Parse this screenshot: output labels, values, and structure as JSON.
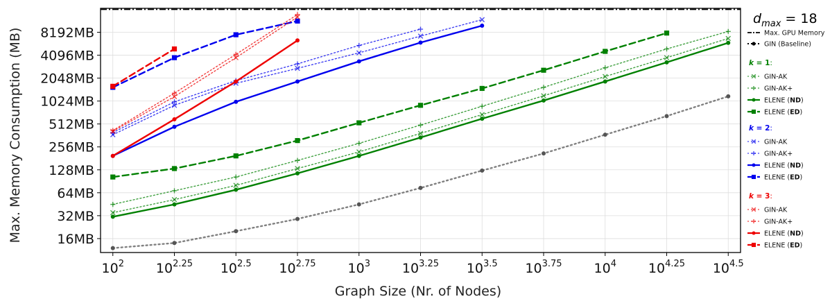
{
  "chart_data": {
    "type": "line",
    "title": "",
    "xlabel": "Graph Size (Nr. of Nodes)",
    "ylabel": "Max. Memory Consumption (MB)",
    "x_scale": "log10",
    "y_scale": "log2",
    "x_ticks": [
      {
        "base": "10",
        "exp": "",
        "value": 100
      },
      {
        "base": "10",
        "exp": "2.25",
        "value": 177.83
      },
      {
        "base": "10",
        "exp": "2.5",
        "value": 316.23
      },
      {
        "base": "10",
        "exp": "2.75",
        "value": 562.34
      },
      {
        "base": "10",
        "exp": "3",
        "value": 1000
      },
      {
        "base": "10",
        "exp": "3.25",
        "value": 1778.28
      },
      {
        "base": "10",
        "exp": "3.5",
        "value": 3162.28
      },
      {
        "base": "10",
        "exp": "3.75",
        "value": 5623.41
      },
      {
        "base": "10",
        "exp": "4",
        "value": 10000
      },
      {
        "base": "10",
        "exp": "4.25",
        "value": 17782.79
      },
      {
        "base": "10",
        "exp": "4.5",
        "value": 31622.78
      }
    ],
    "x_tick_first_exp": "2",
    "y_ticks": [
      {
        "label": "16MB",
        "value": 16
      },
      {
        "label": "32MB",
        "value": 32
      },
      {
        "label": "64MB",
        "value": 64
      },
      {
        "label": "128MB",
        "value": 128
      },
      {
        "label": "256MB",
        "value": 256
      },
      {
        "label": "512MB",
        "value": 512
      },
      {
        "label": "1024MB",
        "value": 1024
      },
      {
        "label": "2048MB",
        "value": 2048
      },
      {
        "label": "4096MB",
        "value": 4096
      },
      {
        "label": "8192MB",
        "value": 8192
      }
    ],
    "xlim_exp": [
      1.95,
      4.55
    ],
    "ylim_mb": [
      10.5,
      16900
    ],
    "grid": true,
    "legend_position": "right",
    "dmax": {
      "symbol": "d",
      "subscript": "max",
      "text": "= 18"
    },
    "gpu_limit_mb": 16384,
    "legend": {
      "top": [
        {
          "label": "Max. GPU Memory",
          "series_ref": "gpu"
        },
        {
          "label": "GIN (Baseline)",
          "series_ref": "gin"
        }
      ],
      "groups": [
        {
          "heading_k": "k",
          "heading_value": "1",
          "color": "#008000",
          "items": [
            {
              "pre": "GIN-AK",
              "bold": "",
              "post": "",
              "style": "x-dotted"
            },
            {
              "pre": "GIN-AK+",
              "bold": "",
              "post": "",
              "style": "plus-dotted"
            },
            {
              "pre": "ELENE (",
              "bold": "ND",
              "post": ")",
              "style": "dot-solid"
            },
            {
              "pre": "ELENE (",
              "bold": "ED",
              "post": ")",
              "style": "square-dashed"
            }
          ]
        },
        {
          "heading_k": "k",
          "heading_value": "2",
          "color": "#0000ee",
          "items": [
            {
              "pre": "GIN-AK",
              "bold": "",
              "post": "",
              "style": "x-dotted"
            },
            {
              "pre": "GIN-AK+",
              "bold": "",
              "post": "",
              "style": "plus-dotted"
            },
            {
              "pre": "ELENE (",
              "bold": "ND",
              "post": ")",
              "style": "dot-solid"
            },
            {
              "pre": "ELENE (",
              "bold": "ED",
              "post": ")",
              "style": "square-dashed"
            }
          ]
        },
        {
          "heading_k": "k",
          "heading_value": "3",
          "color": "#ee0000",
          "items": [
            {
              "pre": "GIN-AK",
              "bold": "",
              "post": "",
              "style": "x-dotted"
            },
            {
              "pre": "GIN-AK+",
              "bold": "",
              "post": "",
              "style": "plus-dotted"
            },
            {
              "pre": "ELENE (",
              "bold": "ND",
              "post": ")",
              "style": "dot-solid"
            },
            {
              "pre": "ELENE (",
              "bold": "ED",
              "post": ")",
              "style": "square-dashed"
            }
          ]
        }
      ]
    },
    "series": [
      {
        "id": "gin",
        "color": "#555555",
        "style": "dot-dotted",
        "x": [
          100,
          177.83,
          316.23,
          562.34,
          1000,
          1778.28,
          3162.28,
          5623.41,
          10000,
          17782.79,
          31622.78
        ],
        "values": [
          12,
          14,
          20,
          29,
          45,
          74,
          125,
          210,
          370,
          650,
          1180
        ]
      },
      {
        "id": "k1-ginak",
        "color": "#008000",
        "style": "x-dotted",
        "x": [
          100,
          177.83,
          316.23,
          562.34,
          1000,
          1778.28,
          3162.28,
          5623.41,
          10000,
          17782.79,
          31622.78
        ],
        "values": [
          35,
          52,
          80,
          133,
          220,
          385,
          680,
          1200,
          2150,
          3800,
          6800
        ]
      },
      {
        "id": "k1-ginakplus",
        "color": "#008000",
        "style": "plus-dotted",
        "x": [
          100,
          177.83,
          316.23,
          562.34,
          1000,
          1778.28,
          3162.28,
          5623.41,
          10000,
          17782.79,
          31622.78
        ],
        "values": [
          45,
          68,
          103,
          170,
          285,
          495,
          875,
          1550,
          2800,
          4950,
          8400
        ]
      },
      {
        "id": "k1-nd",
        "color": "#008000",
        "style": "dot-solid",
        "x": [
          100,
          177.83,
          316.23,
          562.34,
          1000,
          1778.28,
          3162.28,
          5623.41,
          10000,
          17782.79,
          31622.78
        ],
        "values": [
          31,
          45,
          70,
          115,
          195,
          340,
          600,
          1040,
          1850,
          3300,
          5950
        ]
      },
      {
        "id": "k1-ed",
        "color": "#008000",
        "style": "square-dashed",
        "x": [
          100,
          177.83,
          316.23,
          562.34,
          1000,
          1778.28,
          3162.28,
          5623.41,
          10000,
          17782.79
        ],
        "values": [
          103,
          133,
          195,
          310,
          530,
          900,
          1500,
          2600,
          4600,
          8000
        ]
      },
      {
        "id": "k2-ginak",
        "color": "#0000ee",
        "style": "x-dotted",
        "x": [
          100,
          177.83,
          316.23,
          562.34,
          1000,
          1778.28,
          3162.28
        ],
        "values": [
          370,
          900,
          1750,
          2750,
          4400,
          7300,
          12000
        ]
      },
      {
        "id": "k2-ginakplus",
        "color": "#0000ee",
        "style": "plus-dotted",
        "x": [
          100,
          177.83,
          316.23,
          562.34,
          1000,
          1778.28
        ],
        "values": [
          395,
          1000,
          1900,
          3150,
          5500,
          9000
        ]
      },
      {
        "id": "k2-nd",
        "color": "#0000ee",
        "style": "dot-solid",
        "x": [
          100,
          177.83,
          316.23,
          562.34,
          1000,
          1778.28,
          3162.28
        ],
        "values": [
          195,
          470,
          1000,
          1850,
          3400,
          6000,
          10000
        ]
      },
      {
        "id": "k2-ed",
        "color": "#0000ee",
        "style": "square-dashed",
        "x": [
          100,
          177.83,
          316.23,
          562.34
        ],
        "values": [
          1550,
          3800,
          7600,
          11500
        ]
      },
      {
        "id": "k3-ginak",
        "color": "#ee0000",
        "style": "x-dotted",
        "x": [
          100,
          177.83,
          316.23,
          562.34
        ],
        "values": [
          410,
          1170,
          3800,
          13000
        ]
      },
      {
        "id": "k3-ginakplus",
        "color": "#ee0000",
        "style": "plus-dotted",
        "x": [
          100,
          177.83,
          316.23,
          562.34
        ],
        "values": [
          420,
          1300,
          4200,
          14000
        ]
      },
      {
        "id": "k3-nd",
        "color": "#ee0000",
        "style": "dot-solid",
        "x": [
          100,
          177.83,
          316.23,
          562.34
        ],
        "values": [
          195,
          590,
          1850,
          6400
        ]
      },
      {
        "id": "k3-ed",
        "color": "#ee0000",
        "style": "square-dashed",
        "x": [
          100,
          177.83
        ],
        "values": [
          1600,
          4950
        ]
      }
    ]
  }
}
